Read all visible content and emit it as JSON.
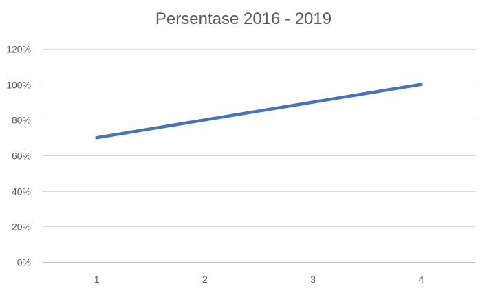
{
  "chart_data": {
    "type": "line",
    "title": "Persentase 2016 - 2019",
    "xlabel": "",
    "ylabel": "",
    "categories": [
      "1",
      "2",
      "3",
      "4"
    ],
    "series": [
      {
        "values": [
          0.7,
          0.8,
          0.9,
          1.0
        ]
      }
    ],
    "ylim": [
      0,
      1.2
    ],
    "yticks": [
      "0%",
      "20%",
      "40%",
      "60%",
      "80%",
      "100%",
      "120%"
    ],
    "grid": true,
    "legend": "none",
    "line_color": "#4472C4",
    "grid_color": "#d9d9d9",
    "axis_color": "#bfbfbf",
    "text_color": "#595959"
  }
}
